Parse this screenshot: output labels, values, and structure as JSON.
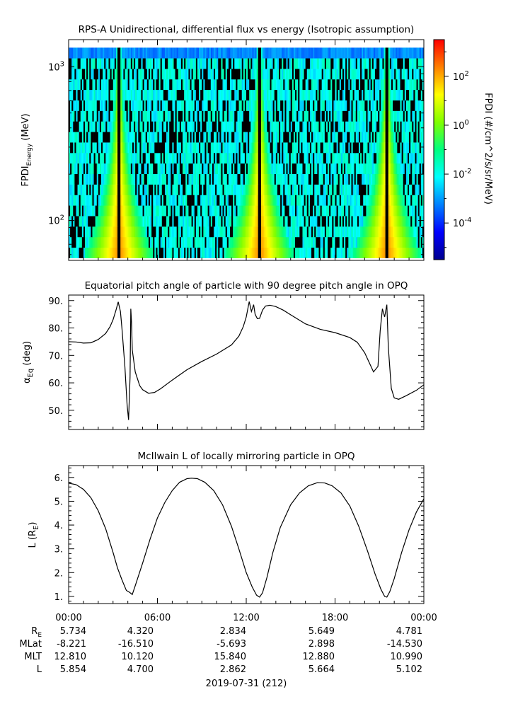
{
  "chart_data": [
    {
      "type": "heatmap",
      "title": "RPS-A Unidirectional, differential flux vs energy (Isotropic assumption)",
      "ylabel_main": "FPDI",
      "ylabel_sub": "Energy",
      "ylabel_unit": " (MeV)",
      "yscale": "log",
      "ylim": [
        55,
        1500
      ],
      "data_ylim": [
        57,
        1330
      ],
      "y_major_ticks": [
        {
          "value": 100,
          "base": "10",
          "exp": "2"
        },
        {
          "value": 1000,
          "base": "10",
          "exp": "3"
        }
      ],
      "xlim": [
        0,
        24
      ],
      "energy_bins": 20,
      "crossings": [
        3.4,
        12.9,
        21.5
      ],
      "colorbar": {
        "label": "FPDI (#/cm^2/s/sr/MeV)",
        "scale": "log",
        "lim_log10": [
          -5.5,
          3.5
        ],
        "ticks": [
          {
            "log": -4,
            "base": "10",
            "exp": "-4"
          },
          {
            "log": -2,
            "base": "10",
            "exp": "-2"
          },
          {
            "log": 0,
            "base": "10",
            "exp": "0"
          },
          {
            "log": 2,
            "base": "10",
            "exp": "2"
          }
        ],
        "colormap": [
          "#00008f",
          "#0000ff",
          "#0080ff",
          "#00ffff",
          "#00ff80",
          "#80ff00",
          "#ffff00",
          "#ff8000",
          "#ff0000"
        ]
      },
      "background_log10_range": [
        -2.6,
        -1.4
      ],
      "dropout_color": "#000000"
    },
    {
      "type": "line",
      "title": "Equatorial pitch angle of particle with 90 degree pitch angle in OPQ",
      "ylabel_main": "α",
      "ylabel_sub": "Eq",
      "ylabel_unit": " (deg)",
      "ylim": [
        43,
        92
      ],
      "yticks": [
        50,
        60,
        70,
        80,
        90
      ],
      "y_tick_labels": [
        "50.",
        "60.",
        "70.",
        "80.",
        "90."
      ],
      "xlim": [
        0,
        24
      ],
      "x": [
        0,
        0.5,
        1.0,
        1.5,
        2.0,
        2.5,
        2.8,
        3.0,
        3.2,
        3.35,
        3.5,
        3.6,
        3.8,
        3.95,
        4.05,
        4.15,
        4.2,
        4.25,
        4.3,
        4.5,
        4.8,
        5.0,
        5.4,
        5.8,
        6.2,
        7.0,
        8.0,
        9.0,
        10.0,
        11.0,
        11.5,
        11.8,
        12.0,
        12.2,
        12.35,
        12.5,
        12.6,
        12.75,
        12.9,
        13.1,
        13.3,
        13.6,
        14.0,
        14.5,
        15.0,
        16.0,
        17.0,
        18.0,
        19.0,
        19.5,
        20.0,
        20.3,
        20.6,
        20.9,
        21.05,
        21.2,
        21.35,
        21.5,
        21.6,
        21.8,
        22.0,
        22.3,
        22.8,
        23.5,
        24.0
      ],
      "y": [
        75.0,
        74.9,
        74.5,
        74.6,
        75.8,
        78.0,
        80.5,
        83.0,
        86.5,
        89.5,
        86.0,
        80.0,
        66.0,
        52.0,
        46.5,
        62.0,
        87.0,
        82.0,
        72.0,
        64.0,
        59.0,
        57.5,
        56.2,
        56.5,
        57.8,
        61.0,
        64.8,
        67.8,
        70.5,
        73.8,
        77.0,
        80.5,
        84.0,
        89.6,
        86.0,
        88.5,
        85.0,
        83.4,
        83.5,
        86.5,
        88.0,
        88.3,
        87.8,
        86.5,
        84.8,
        81.5,
        79.5,
        78.3,
        76.5,
        74.8,
        71.0,
        67.5,
        64.0,
        66.0,
        79.0,
        87.0,
        84.0,
        88.5,
        73.0,
        58.0,
        54.5,
        54.0,
        55.3,
        57.3,
        59.3
      ]
    },
    {
      "type": "line",
      "title": "McIlwain L of locally mirroring particle in OPQ",
      "ylabel_main": "L (R",
      "ylabel_sub": "E",
      "ylabel_unit": ")",
      "ylim": [
        0.7,
        6.5
      ],
      "yticks": [
        1,
        2,
        3,
        4,
        5,
        6
      ],
      "y_tick_labels": [
        "1.",
        "2.",
        "3.",
        "4.",
        "5.",
        "6."
      ],
      "xlim": [
        0,
        24
      ],
      "x": [
        0,
        0.5,
        1.0,
        1.5,
        2.0,
        2.5,
        3.0,
        3.3,
        3.6,
        3.9,
        4.1,
        4.3,
        4.5,
        5.0,
        5.5,
        6.0,
        6.5,
        7.0,
        7.5,
        8.0,
        8.3,
        8.7,
        9.2,
        9.8,
        10.4,
        11.0,
        11.5,
        12.0,
        12.4,
        12.7,
        12.9,
        13.1,
        13.4,
        13.8,
        14.3,
        15.0,
        15.6,
        16.2,
        16.8,
        17.3,
        17.8,
        18.4,
        19.0,
        19.6,
        20.2,
        20.7,
        21.1,
        21.35,
        21.5,
        21.7,
        22.0,
        22.5,
        23.0,
        23.5,
        24.0
      ],
      "y": [
        5.76,
        5.7,
        5.5,
        5.15,
        4.6,
        3.85,
        2.85,
        2.2,
        1.7,
        1.25,
        1.18,
        1.08,
        1.45,
        2.4,
        3.4,
        4.3,
        4.95,
        5.45,
        5.8,
        5.95,
        5.97,
        5.95,
        5.8,
        5.45,
        4.85,
        3.95,
        3.0,
        2.0,
        1.4,
        1.05,
        0.97,
        1.15,
        1.8,
        2.85,
        3.9,
        4.85,
        5.35,
        5.65,
        5.78,
        5.77,
        5.65,
        5.35,
        4.8,
        3.95,
        2.9,
        1.95,
        1.3,
        1.0,
        0.97,
        1.2,
        1.75,
        2.85,
        3.8,
        4.55,
        5.1
      ]
    }
  ],
  "x_axis": {
    "labels": [
      "00:00",
      "06:00",
      "12:00",
      "18:00",
      "00:00"
    ],
    "date_label": "2019-07-31 (212)"
  },
  "ephemeris": [
    {
      "name_main": "R",
      "name_sub": "E",
      "values": [
        "5.734",
        "4.320",
        "2.834",
        "5.649",
        "4.781"
      ]
    },
    {
      "name_main": "MLat",
      "name_sub": "",
      "values": [
        "-8.221",
        "-16.510",
        "-5.693",
        "2.898",
        "-14.530"
      ]
    },
    {
      "name_main": "MLT",
      "name_sub": "",
      "values": [
        "12.810",
        "10.120",
        "15.840",
        "12.880",
        "10.990"
      ]
    },
    {
      "name_main": "L",
      "name_sub": "",
      "values": [
        "5.854",
        "4.700",
        "2.862",
        "5.664",
        "5.102"
      ]
    }
  ]
}
